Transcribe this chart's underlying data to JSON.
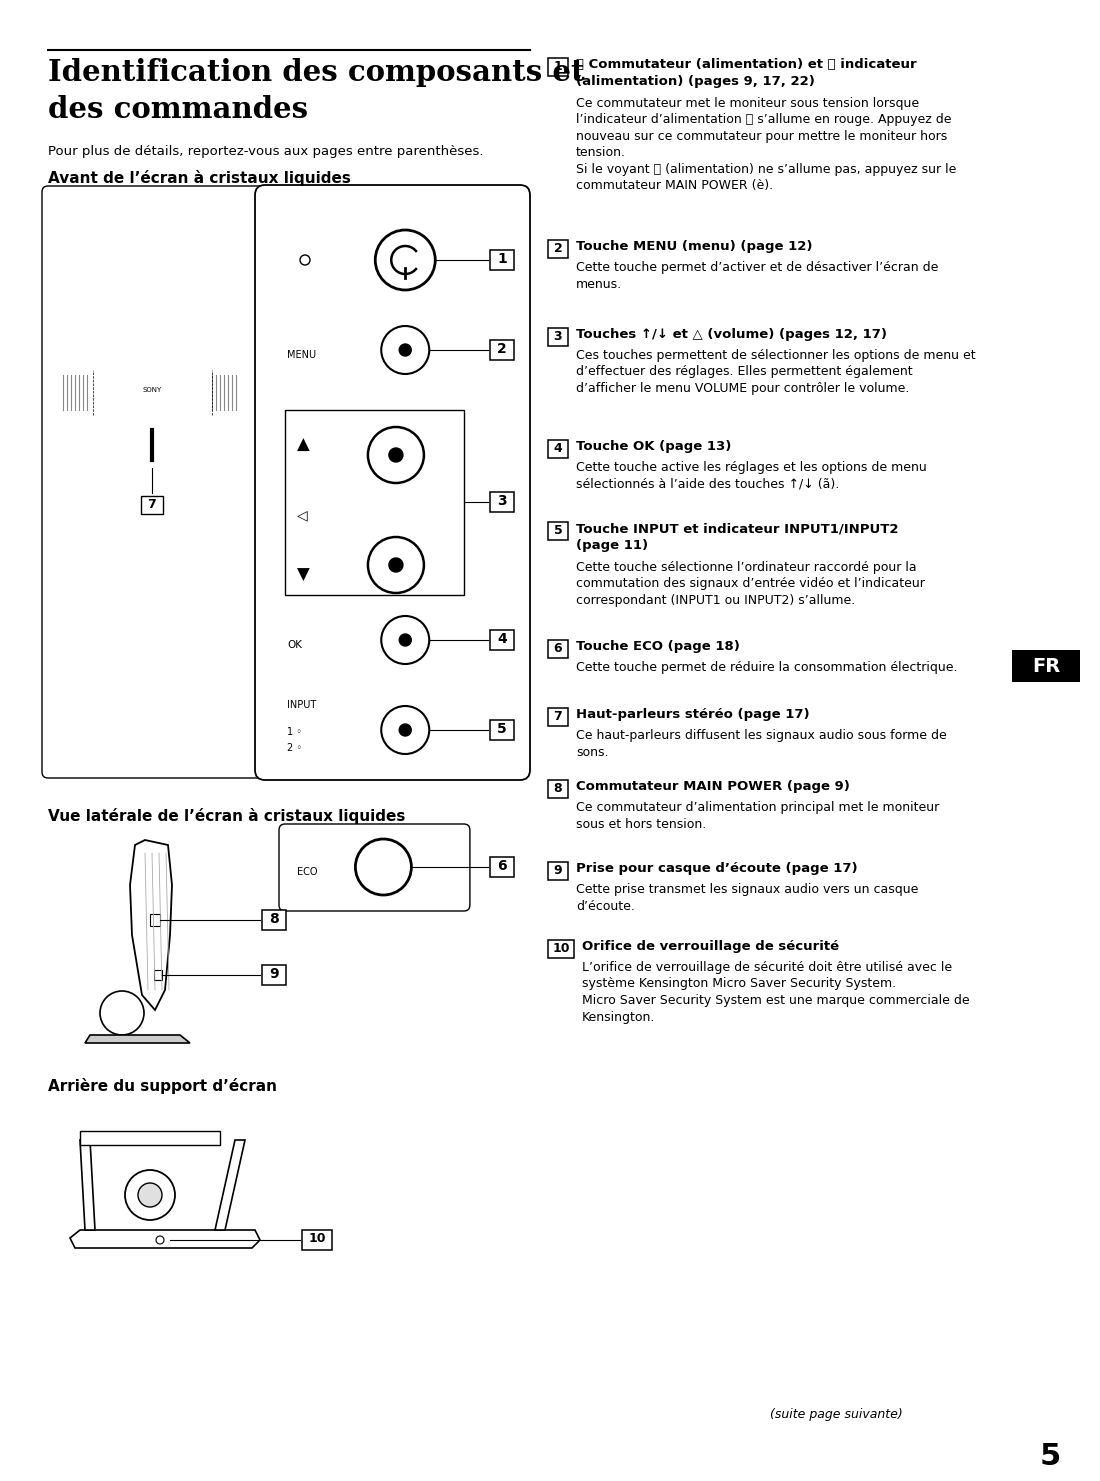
{
  "page_bg": "#ffffff",
  "title_line1": "Identification des composants et",
  "title_line2": "des commandes",
  "subtitle": "Pour plus de détails, reportez-vous aux pages entre parenthèses.",
  "section1_title": "Avant de l’écran à cristaux liquides",
  "section2_title": "Vue latérale de l’écran à cristaux liquides",
  "section3_title": "Arrière du support d’écran",
  "fr_label": "FR",
  "footer": "(suite page suivante)",
  "page_number": "5",
  "right_entries": [
    {
      "num": "1",
      "header_bold": "⏻ Commutateur (alimentation) et ⏻ indicateur\n(alimentation) (pages 9, 17, 22)",
      "body": "Ce commutateur met le moniteur sous tension lorsque\nl’indicateur d’alimentation ⏻ s’allume en rouge. Appuyez de\nnouveau sur ce commutateur pour mettre le moniteur hors\ntension.\nSi le voyant ⏻ (alimentation) ne s’allume pas, appuyez sur le\ncommutateur MAIN POWER (è)."
    },
    {
      "num": "2",
      "header_bold": "Touche MENU (menu) (page 12)",
      "body": "Cette touche permet d’activer et de désactiver l’écran de\nmenus."
    },
    {
      "num": "3",
      "header_bold": "Touches ↑/↓ et △ (volume) (pages 12, 17)",
      "body": "Ces touches permettent de sélectionner les options de menu et\nd’effectuer des réglages. Elles permettent également\nd’afficher le menu VOLUME pour contrôler le volume."
    },
    {
      "num": "4",
      "header_bold": "Touche OK (page 13)",
      "body": "Cette touche active les réglages et les options de menu\nsélectionnés à l’aide des touches ↑/↓ (ã)."
    },
    {
      "num": "5",
      "header_bold": "Touche INPUT et indicateur INPUT1/INPUT2\n(page 11)",
      "body": "Cette touche sélectionne l’ordinateur raccordé pour la\ncommutation des signaux d’entrée vidéo et l’indicateur\ncorrespondant (INPUT1 ou INPUT2) s’allume."
    },
    {
      "num": "6",
      "header_bold": "Touche ECO (page 18)",
      "body": "Cette touche permet de réduire la consommation électrique."
    },
    {
      "num": "7",
      "header_bold": "Haut-parleurs stéréo (page 17)",
      "body": "Ce haut-parleurs diffusent les signaux audio sous forme de\nsons."
    },
    {
      "num": "8",
      "header_bold": "Commutateur MAIN POWER (page 9)",
      "body": "Ce commutateur d’alimentation principal met le moniteur\nsous et hors tension."
    },
    {
      "num": "9",
      "header_bold": "Prise pour casque d’écoute (page 17)",
      "body": "Cette prise transmet les signaux audio vers un casque\nd’écoute."
    },
    {
      "num": "10",
      "header_bold": "Orifice de verrouillage de sécurité",
      "body": "L’orifice de verrouillage de sécurité doit être utilisé avec le\nsystème Kensington Micro Saver Security System.\nMicro Saver Security System est une marque commerciale de\nKensington."
    }
  ]
}
